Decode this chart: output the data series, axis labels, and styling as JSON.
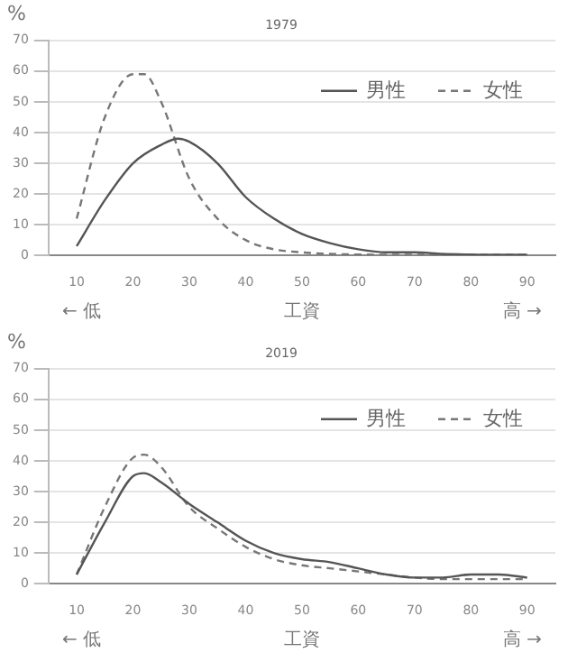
{
  "chart_data": [
    {
      "type": "line",
      "title": "1979",
      "ylabel": "%",
      "xlabel": "工資",
      "annotations": [
        "← 低",
        "高 →"
      ],
      "xlim": [
        5,
        95
      ],
      "xticks": [
        10,
        20,
        30,
        40,
        50,
        60,
        70,
        80,
        90
      ],
      "ylim": [
        0,
        70
      ],
      "yticks": [
        0,
        10,
        20,
        30,
        40,
        50,
        60,
        70
      ],
      "grid": "y",
      "legend": "top right",
      "marker": "none",
      "series": [
        {
          "name": "男性",
          "color": "#555555",
          "line_style": "solid",
          "x": [
            10,
            15,
            20,
            25,
            28,
            30,
            35,
            40,
            45,
            50,
            55,
            60,
            65,
            70,
            75,
            80,
            85,
            90
          ],
          "values": [
            3,
            18,
            30,
            36,
            38,
            37,
            30,
            19,
            12,
            7,
            4,
            2,
            1,
            1,
            0.5,
            0.3,
            0.2,
            0.2
          ]
        },
        {
          "name": "女性",
          "color": "#777777",
          "line_style": "dashed",
          "x": [
            10,
            15,
            20,
            22,
            25,
            30,
            35,
            40,
            45,
            50,
            55,
            60,
            70,
            80,
            90
          ],
          "values": [
            12,
            45,
            59,
            59,
            50,
            25,
            12,
            5,
            2,
            1,
            0.5,
            0.3,
            0.2,
            0.2,
            0.2
          ]
        }
      ]
    },
    {
      "type": "line",
      "title": "2019",
      "ylabel": "%",
      "xlabel": "工資",
      "annotations": [
        "← 低",
        "高 →"
      ],
      "xlim": [
        5,
        95
      ],
      "xticks": [
        10,
        20,
        30,
        40,
        50,
        60,
        70,
        80,
        90
      ],
      "ylim": [
        0,
        70
      ],
      "yticks": [
        0,
        10,
        20,
        30,
        40,
        50,
        60,
        70
      ],
      "grid": "y",
      "legend": "top right",
      "marker": "none",
      "series": [
        {
          "name": "男性",
          "color": "#555555",
          "line_style": "solid",
          "x": [
            10,
            15,
            20,
            22,
            25,
            30,
            35,
            40,
            45,
            50,
            55,
            60,
            65,
            70,
            75,
            80,
            85,
            90
          ],
          "values": [
            3,
            20,
            35,
            36,
            33,
            26,
            20,
            14,
            10,
            8,
            7,
            5,
            3,
            2,
            2,
            3,
            3,
            2
          ]
        },
        {
          "name": "女性",
          "color": "#777777",
          "line_style": "dashed",
          "x": [
            10,
            15,
            20,
            22,
            25,
            30,
            35,
            40,
            45,
            50,
            55,
            60,
            65,
            70,
            75,
            80,
            85,
            90
          ],
          "values": [
            3,
            25,
            41,
            42,
            38,
            25,
            18,
            12,
            8,
            6,
            5,
            4,
            3,
            2,
            1.5,
            1.5,
            1.5,
            1.5
          ]
        }
      ]
    }
  ]
}
